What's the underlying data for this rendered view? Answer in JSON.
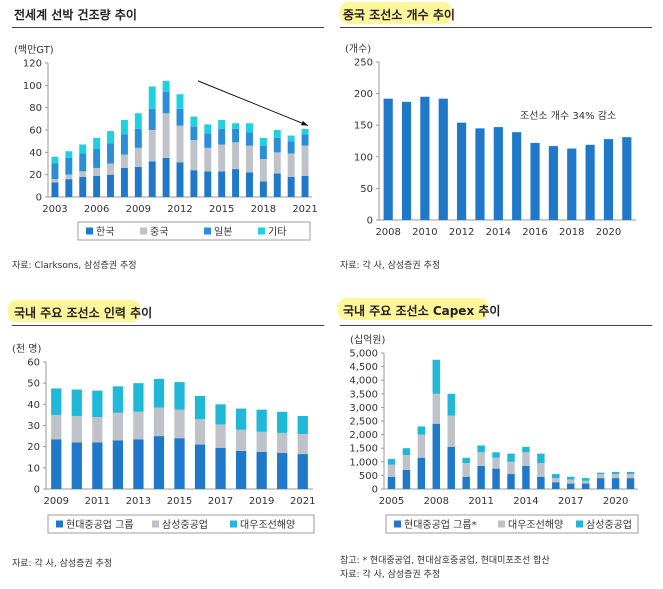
{
  "colors": {
    "dark": "#1f78c8",
    "gray": "#bfc3c9",
    "cyan": "#1fb8d8",
    "teal": "#1fb8d8",
    "highlight": "#fff59a"
  },
  "panel1": {
    "title": "전세계 선박 건조량 추이",
    "source": "자료: Clarksons, 삼성증권 추정",
    "chart_data": {
      "type": "bar",
      "stacked": true,
      "title": "전세계 선박 건조량 추이",
      "ylabel": "(백만GT)",
      "ylim": [
        0,
        120
      ],
      "yticks": [
        0,
        20,
        40,
        60,
        80,
        100,
        120
      ],
      "yticklabels": [
        "0",
        "20",
        "40",
        "60",
        "80",
        "100",
        "120"
      ],
      "categories": [
        "2003",
        "2004",
        "2005",
        "2006",
        "2007",
        "2008",
        "2009",
        "2010",
        "2011",
        "2012",
        "2013",
        "2014",
        "2015",
        "2016",
        "2017",
        "2018",
        "2019",
        "2020",
        "2021"
      ],
      "xticklabels": [
        "2003",
        "2006",
        "2009",
        "2012",
        "2015",
        "2018",
        "2021"
      ],
      "xtickindex": [
        0,
        3,
        6,
        9,
        12,
        15,
        18
      ],
      "series": [
        {
          "name": "한국",
          "values": [
            13,
            16,
            18,
            19,
            20,
            26,
            27,
            32,
            35,
            31,
            24,
            23,
            23,
            25,
            22,
            14,
            21,
            18,
            19
          ]
        },
        {
          "name": "중국",
          "values": [
            3,
            4,
            5,
            7,
            10,
            12,
            17,
            28,
            40,
            33,
            27,
            21,
            24,
            24,
            24,
            20,
            19,
            21,
            27
          ]
        },
        {
          "name": "일본",
          "values": [
            14,
            15,
            16,
            17,
            18,
            18,
            17,
            19,
            19,
            15,
            12,
            13,
            14,
            12,
            12,
            12,
            13,
            11,
            10
          ]
        },
        {
          "name": "기타",
          "values": [
            6,
            6,
            8,
            10,
            11,
            13,
            14,
            20,
            10,
            13,
            9,
            8,
            8,
            5,
            8,
            7,
            7,
            5,
            5
          ]
        }
      ],
      "legend": [
        "한국",
        "중국",
        "일본",
        "기타"
      ]
    }
  },
  "panel2": {
    "title": "중국 조선소 개수 추이",
    "source": "자료: 각 사, 삼성증권 추정",
    "annotation": "조선소 개수 34% 감소",
    "chart_data": {
      "type": "bar",
      "title": "중국 조선소 개수 추이",
      "ylabel": "(개수)",
      "ylim": [
        0,
        250
      ],
      "yticks": [
        0,
        50,
        100,
        150,
        200,
        250
      ],
      "yticklabels": [
        "0",
        "50",
        "100",
        "150",
        "200",
        "250"
      ],
      "categories": [
        "2008",
        "2009",
        "2010",
        "2011",
        "2012",
        "2013",
        "2014",
        "2015",
        "2016",
        "2017",
        "2018",
        "2019",
        "2020",
        "2021"
      ],
      "xticklabels": [
        "2008",
        "2010",
        "2012",
        "2014",
        "2016",
        "2018",
        "2020"
      ],
      "xtickindex": [
        0,
        2,
        4,
        6,
        8,
        10,
        12
      ],
      "values": [
        192,
        187,
        195,
        192,
        154,
        145,
        147,
        139,
        122,
        117,
        113,
        119,
        128,
        131
      ]
    }
  },
  "panel3": {
    "title": "국내 주요 조선소 인력 추이",
    "source": "자료: 각 사, 삼성증권 추정",
    "chart_data": {
      "type": "bar",
      "stacked": true,
      "title": "국내 주요 조선소 인력 추이",
      "ylabel": "(천 명)",
      "ylim": [
        0,
        60
      ],
      "yticks": [
        0,
        10,
        20,
        30,
        40,
        50,
        60
      ],
      "yticklabels": [
        "0",
        "10",
        "20",
        "30",
        "40",
        "50",
        "60"
      ],
      "categories": [
        "2009",
        "2010",
        "2011",
        "2012",
        "2013",
        "2014",
        "2015",
        "2016",
        "2017",
        "2018",
        "2019",
        "2020",
        "2021"
      ],
      "xticklabels": [
        "2009",
        "2011",
        "2013",
        "2015",
        "2017",
        "2019",
        "2021"
      ],
      "xtickindex": [
        0,
        2,
        4,
        6,
        8,
        10,
        12
      ],
      "series": [
        {
          "name": "현대중공업 그룹",
          "values": [
            23.5,
            22,
            22,
            23,
            23.5,
            25,
            24,
            21,
            19.5,
            18,
            17.5,
            17,
            16.5
          ]
        },
        {
          "name": "삼성중공업",
          "values": [
            11.5,
            12.5,
            12,
            13,
            13,
            13.5,
            13.5,
            12,
            11,
            10,
            9.5,
            9.5,
            9.5
          ]
        },
        {
          "name": "대우조선해양",
          "values": [
            12.5,
            12.5,
            12.5,
            12.5,
            13.5,
            13.5,
            13,
            11,
            9.5,
            10,
            10.5,
            10,
            8.5
          ]
        }
      ],
      "legend": [
        "현대중공업 그룹",
        "삼성중공업",
        "대우조선해양"
      ]
    }
  },
  "panel4": {
    "title": "국내 주요 조선소 Capex 추이",
    "source": "자료: 각 사, 삼성증권 추정",
    "note": "참고: * 현대중공업, 현대삼호중공업, 현대미포조선 합산",
    "chart_data": {
      "type": "bar",
      "stacked": true,
      "title": "국내 주요 조선소 Capex 추이",
      "ylabel": "(십억원)",
      "ylim": [
        0,
        5000
      ],
      "yticks": [
        0,
        500,
        1000,
        1500,
        2000,
        2500,
        3000,
        3500,
        4000,
        4500,
        5000
      ],
      "yticklabels": [
        "0",
        "500",
        "1,000",
        "1,500",
        "2,000",
        "2,500",
        "3,000",
        "3,500",
        "4,000",
        "4,500",
        "5,000"
      ],
      "categories": [
        "2005",
        "2006",
        "2007",
        "2008",
        "2009",
        "2010",
        "2011",
        "2012",
        "2013",
        "2014",
        "2015",
        "2016",
        "2017",
        "2018",
        "2019",
        "2020",
        "2021"
      ],
      "xticklabels": [
        "2005",
        "2008",
        "2011",
        "2014",
        "2017",
        "2020"
      ],
      "xtickindex": [
        0,
        3,
        6,
        9,
        12,
        15
      ],
      "series": [
        {
          "name": "현대중공업 그룹*",
          "values": [
            450,
            700,
            1150,
            2400,
            1550,
            450,
            850,
            750,
            550,
            850,
            450,
            250,
            200,
            200,
            400,
            400,
            400
          ]
        },
        {
          "name": "대우조선해양",
          "values": [
            450,
            550,
            850,
            1100,
            1150,
            500,
            500,
            400,
            450,
            500,
            500,
            150,
            150,
            100,
            150,
            150,
            150
          ]
        },
        {
          "name": "삼성중공업",
          "values": [
            200,
            250,
            300,
            1250,
            800,
            200,
            250,
            200,
            300,
            200,
            350,
            150,
            100,
            100,
            50,
            80,
            80
          ]
        }
      ],
      "legend": [
        "현대중공업 그룹*",
        "대우조선해양",
        "삼성중공업"
      ]
    }
  }
}
